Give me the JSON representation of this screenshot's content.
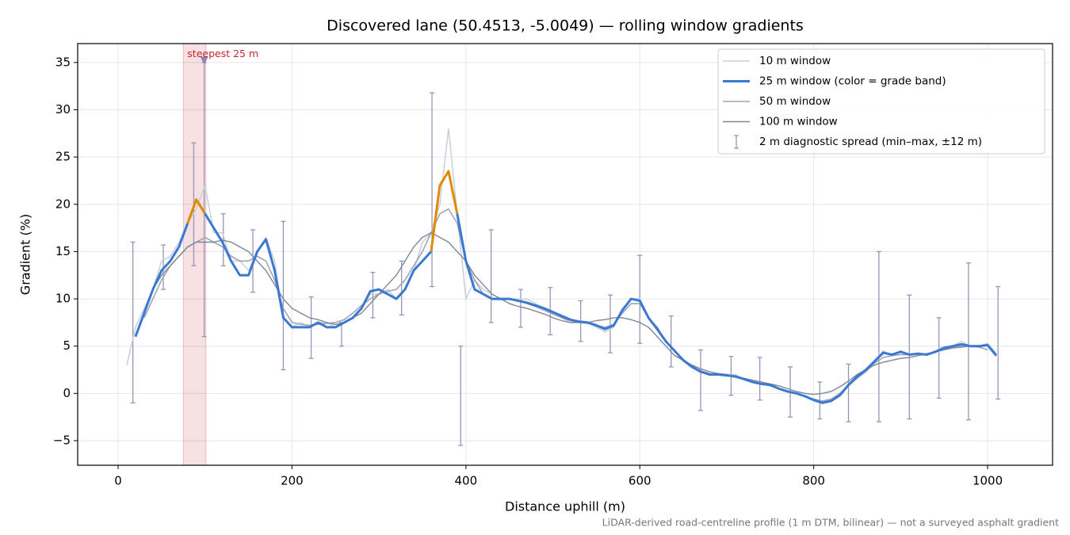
{
  "chart_data": {
    "type": "line",
    "title": "Discovered lane (50.4513, -5.0049) — rolling window gradients",
    "x_label": "Distance uphill (m)",
    "y_label": "Gradient (%)",
    "footnote": "LiDAR-derived road-centreline profile (1 m DTM, bilinear) — not a surveyed asphalt gradient",
    "xlim": [
      -46.5,
      1074.7
    ],
    "ylim": [
      -7.6,
      37.0
    ],
    "xticks": [
      0,
      200,
      400,
      600,
      800,
      1000
    ],
    "yticks": [
      {
        "value": -5,
        "label": "−5"
      },
      0,
      5,
      10,
      15,
      20,
      25,
      30,
      35
    ],
    "grid": true,
    "legend": "upper right",
    "x": [
      10,
      20,
      30,
      40,
      50,
      60,
      70,
      80,
      90,
      100,
      110,
      120,
      130,
      140,
      150,
      160,
      170,
      180,
      190,
      200,
      210,
      220,
      230,
      240,
      250,
      260,
      270,
      280,
      290,
      300,
      310,
      320,
      330,
      340,
      350,
      360,
      370,
      380,
      390,
      400,
      410,
      420,
      430,
      440,
      450,
      460,
      470,
      480,
      490,
      500,
      510,
      520,
      530,
      540,
      550,
      560,
      570,
      580,
      590,
      600,
      610,
      620,
      630,
      640,
      650,
      660,
      670,
      680,
      690,
      700,
      710,
      720,
      730,
      740,
      750,
      760,
      770,
      780,
      790,
      800,
      810,
      820,
      830,
      840,
      850,
      860,
      870,
      880,
      890,
      900,
      910,
      920,
      930,
      940,
      950,
      960,
      970,
      980,
      990,
      1000,
      1010
    ],
    "series": [
      {
        "name": "10 m window",
        "color": "#c7d0da",
        "width": 1.5,
        "values": [
          3,
          7,
          9,
          11,
          14,
          14.5,
          16,
          18,
          19.5,
          22,
          17,
          17,
          14,
          14,
          13,
          15,
          16.5,
          14,
          8,
          7,
          7.5,
          7,
          7.5,
          7.5,
          7,
          7.5,
          8,
          9,
          10.5,
          10.5,
          11,
          10,
          11,
          13,
          16,
          17,
          20,
          28,
          19,
          10,
          12,
          11,
          10.5,
          10,
          10,
          10,
          10,
          9.5,
          9,
          8.5,
          8,
          7.5,
          7.5,
          7.5,
          7,
          6.5,
          7,
          9,
          10,
          10,
          8,
          7,
          5.5,
          4.5,
          3.5,
          2.8,
          2.3,
          2,
          2,
          2,
          2,
          1.5,
          1.2,
          1,
          1,
          0.5,
          0.2,
          0,
          -0.3,
          -0.7,
          -1,
          -0.8,
          -0.2,
          1,
          1.8,
          2.5,
          3.5,
          4.5,
          4,
          4.5,
          4,
          4.3,
          4,
          4.5,
          5,
          5,
          5.5,
          5,
          5,
          5.3,
          4.2
        ]
      },
      {
        "name": "25 m window (color = grade band)",
        "color": "#3a78d4",
        "highlight_color": "#e08a00",
        "highlight_above": 20,
        "width": 3,
        "values": [
          null,
          6,
          8.5,
          11,
          13,
          14,
          15.5,
          18,
          20.5,
          19,
          17.5,
          16,
          14,
          12.5,
          12.5,
          15,
          16.3,
          13,
          8,
          7,
          7,
          7,
          7.5,
          7,
          7,
          7.5,
          8,
          9,
          10.8,
          11,
          10.5,
          10,
          11,
          13,
          14,
          15,
          22,
          23.5,
          19,
          14,
          11,
          10.5,
          10,
          10,
          10,
          9.8,
          9.6,
          9.3,
          9,
          8.6,
          8.2,
          7.8,
          7.6,
          7.5,
          7.2,
          6.8,
          7.2,
          8.8,
          10,
          9.8,
          8,
          6.8,
          5.5,
          4.5,
          3.5,
          2.8,
          2.3,
          2,
          2,
          1.9,
          1.8,
          1.5,
          1.2,
          1,
          0.9,
          0.5,
          0.2,
          0,
          -0.3,
          -0.7,
          -1,
          -0.8,
          -0.2,
          0.9,
          1.8,
          2.5,
          3.4,
          4.3,
          4.1,
          4.4,
          4.1,
          4.2,
          4.1,
          4.4,
          4.8,
          5,
          5.2,
          5,
          5,
          5.1,
          4
        ]
      },
      {
        "name": "50 m window",
        "color": "#9ba6b4",
        "width": 1.6,
        "values": [
          null,
          null,
          8,
          10,
          12,
          13.5,
          14.5,
          15.5,
          16,
          16.5,
          16,
          15.5,
          14.5,
          14,
          14,
          14.5,
          14,
          12,
          9,
          7.5,
          7.3,
          7.2,
          7.3,
          7.4,
          7.5,
          7.8,
          8.5,
          9.3,
          10,
          10.5,
          10.8,
          11,
          12,
          13.5,
          15,
          17,
          19,
          19.5,
          18,
          14,
          12,
          10.5,
          10,
          10,
          10,
          9.8,
          9.5,
          9.2,
          8.8,
          8.4,
          8,
          7.7,
          7.5,
          7.4,
          7.2,
          7,
          7.3,
          8.5,
          9.5,
          9.5,
          8,
          7,
          5.5,
          4.5,
          3.6,
          2.9,
          2.4,
          2.1,
          2,
          1.9,
          1.7,
          1.5,
          1.2,
          1,
          0.8,
          0.5,
          0.2,
          0,
          -0.3,
          -0.6,
          -0.8,
          -0.6,
          0,
          0.8,
          1.6,
          2.3,
          3.2,
          3.8,
          4,
          4.1,
          4.1,
          4.2,
          4.2,
          4.4,
          4.7,
          4.9,
          5,
          5,
          4.9,
          4.6,
          null
        ]
      },
      {
        "name": "100 m window",
        "color": "#7f8795",
        "width": 1.4,
        "values": [
          null,
          null,
          null,
          11,
          12.5,
          13.5,
          14.5,
          15.5,
          16,
          16,
          16,
          16.2,
          16,
          15.5,
          15,
          14,
          13,
          11.5,
          10,
          9,
          8.5,
          8,
          7.8,
          7.5,
          7.3,
          7.5,
          8,
          8.5,
          9.5,
          10.5,
          11.5,
          12.5,
          14,
          15.5,
          16.5,
          17,
          16.5,
          16,
          15,
          14,
          12.5,
          11.5,
          10.5,
          10,
          9.5,
          9.2,
          9,
          8.7,
          8.4,
          8,
          7.7,
          7.5,
          7.5,
          7.5,
          7.7,
          7.8,
          8,
          8,
          7.8,
          7.5,
          7,
          6,
          5,
          4,
          3.5,
          3,
          2.6,
          2.3,
          2.1,
          2,
          1.8,
          1.6,
          1.4,
          1.2,
          1,
          0.8,
          0.5,
          0.2,
          0,
          -0.1,
          0,
          0.2,
          0.7,
          1.3,
          2,
          2.5,
          3,
          3.3,
          3.5,
          3.7,
          3.8,
          4,
          4.2,
          4.4,
          4.6,
          4.8,
          4.9,
          5,
          null,
          null,
          null
        ]
      }
    ],
    "errorbars": {
      "name": "2 m diagnostic spread (min–max, ±12 m)",
      "color": "#9a92bb",
      "x": [
        17,
        52,
        87,
        99,
        121,
        155,
        190,
        222,
        257,
        293,
        326,
        361,
        394,
        429,
        463,
        497,
        532,
        566,
        600,
        636,
        670,
        705,
        738,
        773,
        807,
        840,
        875,
        910,
        944,
        978,
        1012
      ],
      "low": [
        -1,
        11,
        13.5,
        6,
        13.5,
        10.7,
        2.5,
        3.7,
        5,
        8,
        8.3,
        11.3,
        -5.5,
        7.5,
        7,
        6.2,
        5.5,
        4.3,
        5.3,
        2.8,
        -1.8,
        -0.2,
        -0.7,
        -2.5,
        -2.7,
        -3,
        -3,
        -2.7,
        -0.5,
        -2.8,
        -0.6
      ],
      "high": [
        16,
        15.7,
        26.5,
        35,
        19,
        17.3,
        18.2,
        10.2,
        7.5,
        12.8,
        14,
        31.8,
        5,
        17.3,
        11,
        11.2,
        9.8,
        10.4,
        14.6,
        8.2,
        4.6,
        3.9,
        3.8,
        2.8,
        1.2,
        3.1,
        15,
        10.4,
        8,
        13.8,
        11.3
      ]
    },
    "annotation": {
      "text": "steepest 25 m",
      "color": "#c8242f",
      "span": [
        75,
        101
      ],
      "point": [
        99,
        35.2
      ]
    }
  }
}
